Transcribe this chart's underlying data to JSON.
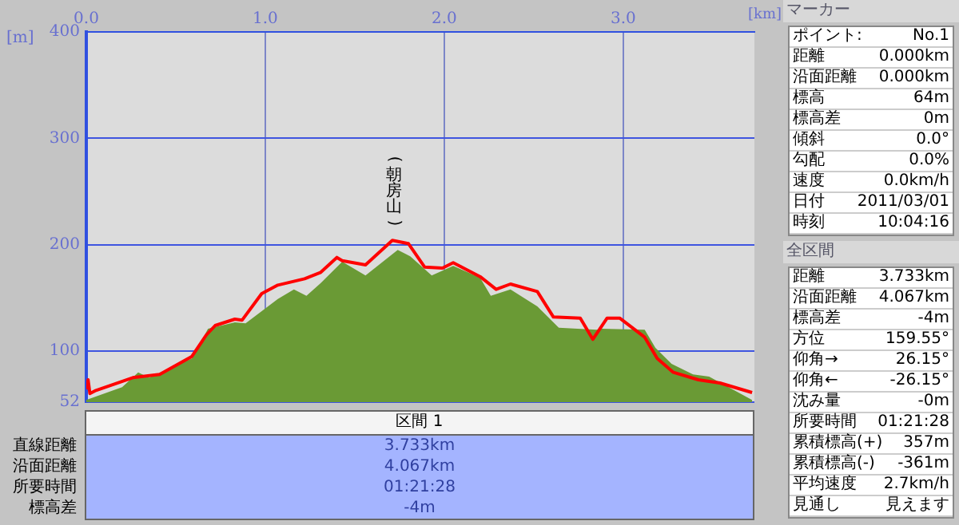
{
  "chart_data": [
    {
      "type": "area",
      "xlabel": "[km]",
      "ylabel": "[m]",
      "xlim": [
        0,
        3.733
      ],
      "xticks": [
        {
          "value": 0,
          "label": "0.0"
        },
        {
          "value": 1,
          "label": "1.0"
        },
        {
          "value": 2,
          "label": "2.0"
        },
        {
          "value": 3,
          "label": "3.0"
        }
      ],
      "ylim": [
        52,
        400
      ],
      "yticks": [
        52,
        100,
        200,
        300,
        400
      ],
      "grid": true,
      "legend": false,
      "annotations": [
        {
          "text": "(朝房山)",
          "x": 1.72,
          "y": 204
        }
      ],
      "series": [
        {
          "type": "area",
          "color": "#6a9a35",
          "x": [
            0,
            0.2,
            0.29,
            0.35,
            0.59,
            0.68,
            0.83,
            0.89,
            1.07,
            1.16,
            1.23,
            1.31,
            1.43,
            1.56,
            1.74,
            1.81,
            1.93,
            2.05,
            2.2,
            2.26,
            2.37,
            2.52,
            2.64,
            2.85,
            2.88,
            3.12,
            3.18,
            3.27,
            3.39,
            3.48,
            3.72
          ],
          "values": [
            54,
            66,
            80,
            75,
            93,
            121,
            127,
            126,
            149,
            158,
            152,
            164,
            184,
            171,
            195,
            189,
            171,
            180,
            169,
            152,
            158,
            142,
            122,
            120,
            121,
            120,
            103,
            88,
            78,
            76,
            54
          ]
        },
        {
          "type": "line",
          "color": "#ff0000",
          "x": [
            0,
            0.01,
            0.02,
            0.054,
            0.26,
            0.41,
            0.59,
            0.67,
            0.72,
            0.83,
            0.87,
            0.98,
            1.07,
            1.22,
            1.31,
            1.4,
            1.43,
            1.56,
            1.71,
            1.8,
            1.89,
            1.99,
            2.05,
            2.2,
            2.29,
            2.37,
            2.52,
            2.61,
            2.76,
            2.83,
            2.91,
            2.98,
            3.12,
            3.19,
            3.28,
            3.42,
            3.54,
            3.72
          ],
          "values": [
            64,
            73,
            60,
            63,
            75,
            78,
            95,
            115,
            124,
            130,
            129,
            154,
            162,
            168,
            174,
            188,
            185,
            181,
            204,
            201,
            179,
            178,
            183,
            170,
            158,
            163,
            156,
            132,
            131,
            111,
            131,
            131,
            113,
            93,
            80,
            73,
            70,
            61
          ]
        }
      ]
    },
    {
      "type": "other",
      "title": "区間 1",
      "annotations": [
        "直線距離",
        "3.733km",
        "沿面距離",
        "4.067km",
        "所要時間",
        "01:21:28",
        "標高差",
        "-4m"
      ]
    },
    {
      "type": "other",
      "title": "マーカー",
      "annotations": [
        "ポイント:",
        "No.1",
        "距離",
        "0.000km",
        "沿面距離",
        "0.000km",
        "標高",
        "64m",
        "標高差",
        "0m",
        "傾斜",
        "0.0°",
        "勾配",
        "0.0%",
        "速度",
        "0.0km/h",
        "日付",
        "2011/03/01",
        "時刻",
        "10:04:16"
      ]
    },
    {
      "type": "other",
      "title": "全区間",
      "annotations": [
        "距離",
        "3.733km",
        "沿面距離",
        "4.067km",
        "標高差",
        "-4m",
        "方位",
        "159.55°",
        "仰角→",
        "26.15°",
        "仰角←",
        "-26.15°",
        "沈み量",
        "-0m",
        "所要時間",
        "01:21:28",
        "累積標高(+)",
        "357m",
        "累積標高(-)",
        "-361m",
        "平均速度",
        "2.7km/h",
        "見通し",
        "見えます"
      ]
    }
  ]
}
